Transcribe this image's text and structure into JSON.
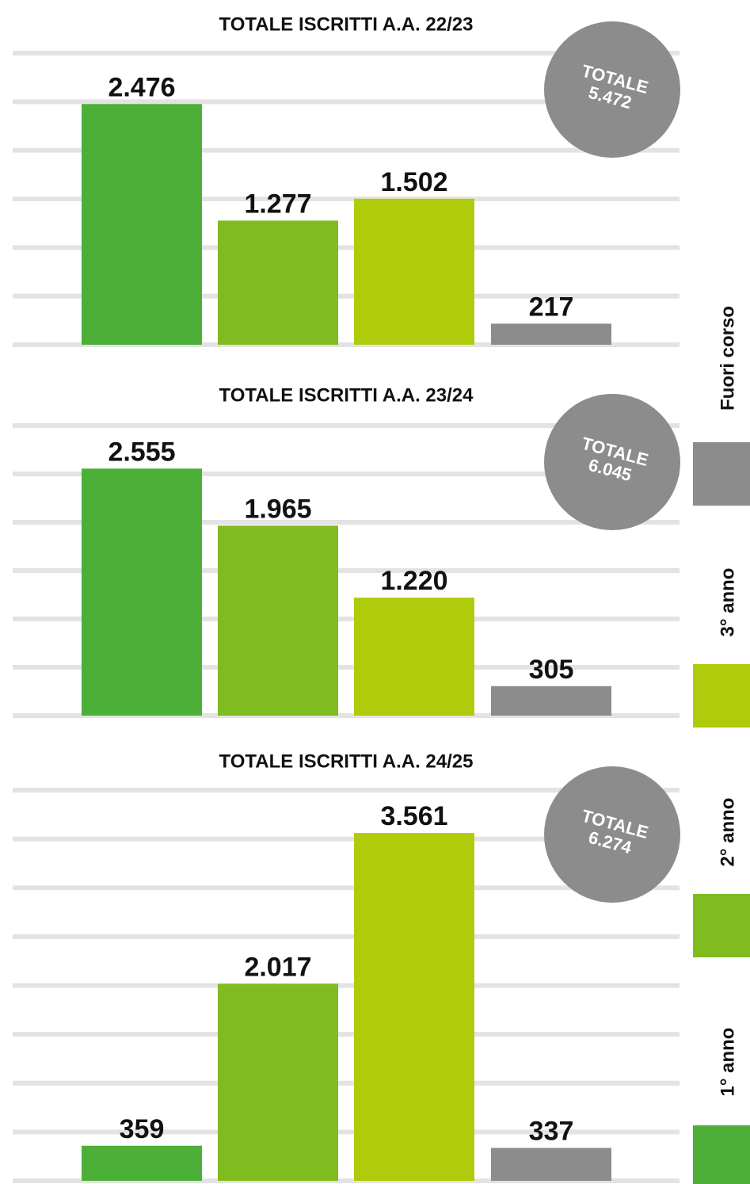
{
  "chart_data": [
    {
      "type": "bar",
      "title": "TOTALE ISCRITTI A.A. 22/23",
      "categories": [
        "1° anno",
        "2° anno",
        "3° anno",
        "Fuori corso"
      ],
      "values": [
        2476,
        1277,
        1502,
        217
      ],
      "value_labels": [
        "2.476",
        "1.277",
        "1.502",
        "217"
      ],
      "colors": [
        "#4caf37",
        "#80bb1f",
        "#afcb0b",
        "#8c8c8c"
      ],
      "ylim": [
        0,
        3000
      ],
      "yticks": [
        0,
        500,
        1000,
        1500,
        2000,
        2500,
        3000
      ],
      "grid": true,
      "annotation": [
        "TOTALE",
        "5.472"
      ]
    },
    {
      "type": "bar",
      "title": "TOTALE ISCRITTI A.A. 23/24",
      "categories": [
        "1° anno",
        "2° anno",
        "3° anno",
        "Fuori corso"
      ],
      "values": [
        2555,
        1965,
        1220,
        305
      ],
      "value_labels": [
        "2.555",
        "1.965",
        "1.220",
        "305"
      ],
      "colors": [
        "#4caf37",
        "#80bb1f",
        "#afcb0b",
        "#8c8c8c"
      ],
      "ylim": [
        0,
        3000
      ],
      "yticks": [
        0,
        500,
        1000,
        1500,
        2000,
        2500,
        3000
      ],
      "grid": true,
      "annotation": [
        "TOTALE",
        "6.045"
      ]
    },
    {
      "type": "bar",
      "title": "TOTALE ISCRITTI A.A. 24/25",
      "categories": [
        "1° anno",
        "2° anno",
        "3° anno",
        "Fuori corso"
      ],
      "values": [
        359,
        2017,
        3561,
        337
      ],
      "value_labels": [
        "359",
        "2.017",
        "3.561",
        "337"
      ],
      "colors": [
        "#4caf37",
        "#80bb1f",
        "#afcb0b",
        "#8c8c8c"
      ],
      "ylim": [
        0,
        4000
      ],
      "yticks": [
        0,
        500,
        1000,
        1500,
        2000,
        2500,
        3000,
        3500,
        4000
      ],
      "grid": true,
      "annotation": [
        "TOTALE",
        "6.274"
      ]
    }
  ]
}
